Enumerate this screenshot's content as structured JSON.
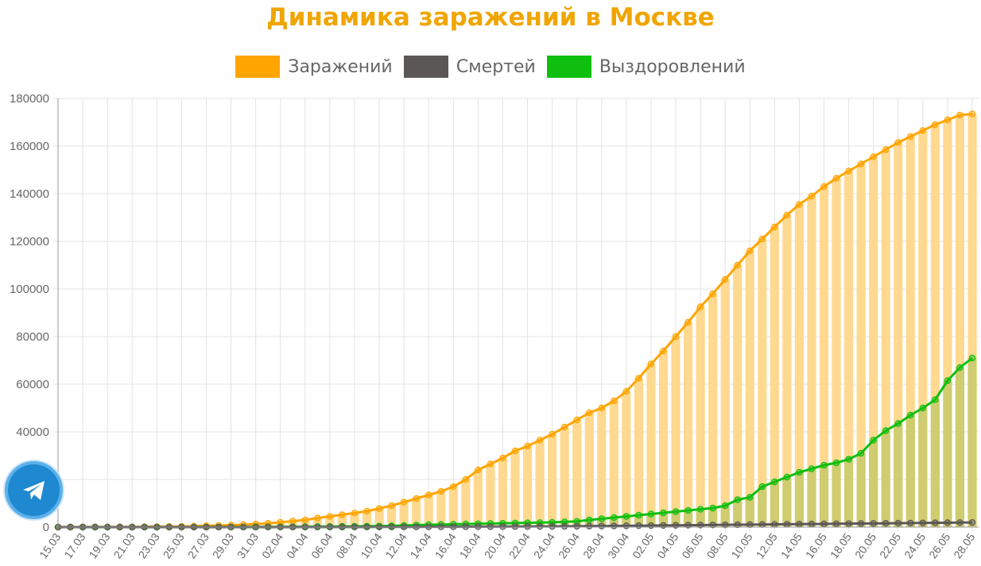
{
  "title": "Динамика заражений в Москве",
  "colors": {
    "title": "#f0a500",
    "infected": "#ffa500",
    "infected_bar": "#ffd98f",
    "deaths": "#5b5757",
    "recovered": "#0fbf0f",
    "overlap_bar": "#d0cc70",
    "grid": "#e3e3e3",
    "axis": "#999999"
  },
  "legend": [
    {
      "key": "infected",
      "label": "Заражений"
    },
    {
      "key": "deaths",
      "label": "Смертей"
    },
    {
      "key": "recovered",
      "label": "Выздоровлений"
    }
  ],
  "telegram": {
    "icon": "telegram-icon"
  },
  "chart_data": {
    "type": "bar",
    "title": "Динамика заражений в Москве",
    "ylim": [
      0,
      180000
    ],
    "yticks": [
      0,
      20000,
      40000,
      60000,
      80000,
      100000,
      120000,
      140000,
      160000,
      180000
    ],
    "grid": true,
    "legend_position": "top",
    "x": [
      "15.03",
      "16.03",
      "17.03",
      "18.03",
      "19.03",
      "20.03",
      "21.03",
      "22.03",
      "23.03",
      "24.03",
      "25.03",
      "26.03",
      "27.03",
      "28.03",
      "29.03",
      "30.03",
      "31.03",
      "01.04",
      "02.04",
      "03.04",
      "04.04",
      "05.04",
      "06.04",
      "07.04",
      "08.04",
      "09.04",
      "10.04",
      "11.04",
      "12.04",
      "13.04",
      "14.04",
      "15.04",
      "16.04",
      "17.04",
      "18.04",
      "19.04",
      "20.04",
      "21.04",
      "22.04",
      "23.04",
      "24.04",
      "25.04",
      "26.04",
      "27.04",
      "28.04",
      "29.04",
      "30.04",
      "01.05",
      "02.05",
      "03.05",
      "04.05",
      "05.05",
      "06.05",
      "07.05",
      "08.05",
      "09.05",
      "10.05",
      "11.05",
      "12.05",
      "13.05",
      "14.05",
      "15.05",
      "16.05",
      "17.05",
      "18.05",
      "19.05",
      "20.05",
      "21.05",
      "22.05",
      "23.05",
      "24.05",
      "25.05",
      "26.05",
      "27.05",
      "28.05"
    ],
    "xtick_labels": [
      "15.03",
      "17.03",
      "19.03",
      "21.03",
      "23.03",
      "25.03",
      "27.03",
      "29.03",
      "31.03",
      "02.04",
      "04.04",
      "06.04",
      "08.04",
      "10.04",
      "12.04",
      "14.04",
      "16.04",
      "18.04",
      "20.04",
      "22.04",
      "24.04",
      "26.04",
      "28.04",
      "30.04",
      "02.05",
      "04.05",
      "06.05",
      "08.05",
      "10.05",
      "12.05",
      "14.05",
      "16.05",
      "18.05",
      "20.05",
      "22.05",
      "24.05",
      "26.05",
      "28.05"
    ],
    "series": [
      {
        "name": "Заражений",
        "type": "line+bar",
        "values": [
          35,
          35,
          35,
          45,
          55,
          80,
          100,
          150,
          200,
          260,
          300,
          390,
          550,
          700,
          850,
          1050,
          1300,
          1600,
          2000,
          2500,
          3000,
          3800,
          4500,
          5200,
          5900,
          6700,
          7800,
          9000,
          10500,
          12000,
          13500,
          15000,
          17000,
          20000,
          24000,
          26500,
          29000,
          32000,
          34000,
          36500,
          39000,
          42000,
          45000,
          48000,
          50000,
          53000,
          57000,
          62500,
          68500,
          74000,
          80000,
          86000,
          92500,
          98000,
          104000,
          110000,
          116000,
          121000,
          126000,
          131000,
          135500,
          139000,
          143000,
          146500,
          149500,
          152500,
          155500,
          158500,
          161500,
          164000,
          166500,
          169000,
          171000,
          173000,
          173500
        ]
      },
      {
        "name": "Смертей",
        "type": "line",
        "values": [
          0,
          0,
          0,
          0,
          0,
          0,
          0,
          0,
          0,
          0,
          0,
          0,
          1,
          2,
          4,
          6,
          8,
          10,
          15,
          20,
          25,
          30,
          35,
          45,
          55,
          60,
          70,
          80,
          90,
          100,
          110,
          120,
          140,
          160,
          180,
          200,
          220,
          240,
          260,
          280,
          300,
          330,
          360,
          400,
          450,
          500,
          550,
          600,
          650,
          700,
          750,
          800,
          850,
          900,
          950,
          1000,
          1050,
          1100,
          1150,
          1200,
          1250,
          1300,
          1350,
          1400,
          1450,
          1500,
          1550,
          1600,
          1650,
          1700,
          1750,
          1800,
          1850,
          1900,
          1950
        ]
      },
      {
        "name": "Выздоровлений",
        "type": "line+bar",
        "values": [
          0,
          0,
          0,
          0,
          0,
          0,
          0,
          0,
          0,
          0,
          10,
          20,
          30,
          40,
          50,
          60,
          80,
          100,
          120,
          150,
          180,
          220,
          260,
          300,
          350,
          400,
          450,
          500,
          700,
          850,
          1000,
          1100,
          1200,
          1300,
          1400,
          1500,
          1600,
          1700,
          1800,
          1900,
          2000,
          2200,
          2400,
          3000,
          3500,
          4000,
          4500,
          5000,
          5500,
          6000,
          6500,
          7000,
          7500,
          8000,
          9000,
          11500,
          12500,
          17000,
          19000,
          21000,
          23000,
          24500,
          26000,
          27000,
          28500,
          31000,
          36500,
          40500,
          43500,
          47000,
          50000,
          53500,
          61500,
          67000,
          71000
        ]
      }
    ]
  }
}
